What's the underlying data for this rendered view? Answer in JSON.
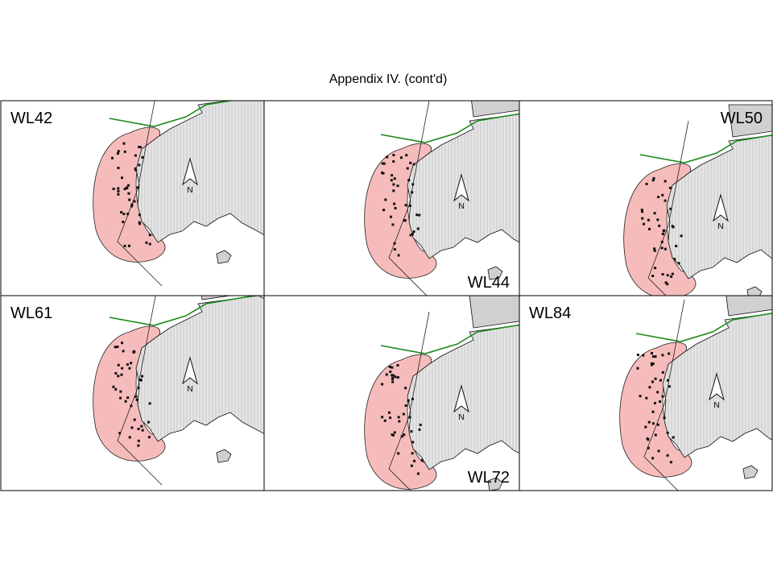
{
  "header": {
    "title": "Appendix IV.  (cont'd)"
  },
  "panels": [
    {
      "label": "WL42",
      "north_label": "N"
    },
    {
      "label": "WL44",
      "north_label": "N"
    },
    {
      "label": "WL50",
      "north_label": "N"
    },
    {
      "label": "WL61",
      "north_label": "N"
    },
    {
      "label": "WL72",
      "north_label": "N"
    },
    {
      "label": "WL84",
      "north_label": "N"
    }
  ]
}
